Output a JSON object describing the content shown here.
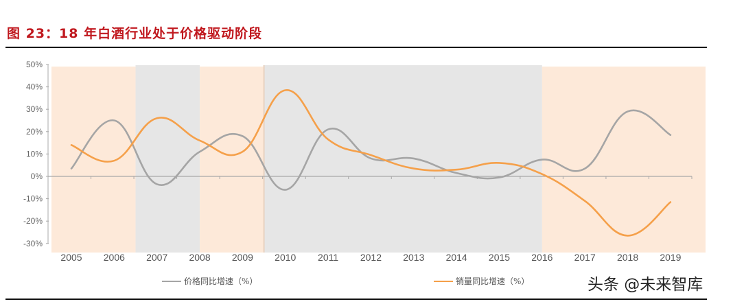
{
  "title": "图 23：18 年白酒行业处于价格驱动阶段",
  "watermark": "头条 @未来智库",
  "colors": {
    "price": "#a5a5a5",
    "volume": "#f5a04a",
    "band_price_driven": "#fde9d9",
    "band_volume_driven": "#e6e6e6",
    "title": "#c0181e"
  },
  "legend": {
    "price_label": "价格同比增速（%）",
    "volume_label": "销量同比增速（%）"
  },
  "chart_data": {
    "type": "line",
    "title": "18 年白酒行业处于价格驱动阶段",
    "xlabel": "",
    "ylabel": "",
    "categories": [
      "2005",
      "2006",
      "2007",
      "2008",
      "2009",
      "2010",
      "2011",
      "2012",
      "2013",
      "2014",
      "2015",
      "2016",
      "2017",
      "2018",
      "2019"
    ],
    "series": [
      {
        "name": "价格同比增速（%）",
        "color": "#a5a5a5",
        "values": [
          3.5,
          25,
          -3.5,
          11,
          18,
          -6,
          21,
          8,
          8,
          1.5,
          -0.5,
          7.5,
          3.5,
          29,
          18.5
        ]
      },
      {
        "name": "销量同比增速（%）",
        "color": "#f5a04a",
        "values": [
          14,
          7,
          26,
          16,
          11,
          38.5,
          16.5,
          9.5,
          3.5,
          3,
          6,
          1,
          -11,
          -26.5,
          -11.5
        ]
      }
    ],
    "ylim": [
      -30,
      50
    ],
    "yticks": [
      "50%",
      "40%",
      "30%",
      "20%",
      "10%",
      "0%",
      "-10%",
      "-20%",
      "-30%"
    ],
    "smooth": true,
    "grid": false,
    "legend_position": "bottom",
    "background_bands": [
      {
        "from": "2004.5",
        "to": "2006.5",
        "type": "price-driven",
        "color": "#fde9d9"
      },
      {
        "from": "2006.5",
        "to": "2008",
        "type": "volume-driven",
        "color": "#e6e6e6"
      },
      {
        "from": "2008",
        "to": "2009.5",
        "type": "price-driven",
        "color": "#fde9d9"
      },
      {
        "from": "2009.5",
        "to": "2016",
        "type": "volume-driven",
        "color": "#e6e6e6"
      },
      {
        "from": "2016",
        "to": "2019.8",
        "type": "price-driven",
        "color": "#fde9d9"
      }
    ]
  }
}
